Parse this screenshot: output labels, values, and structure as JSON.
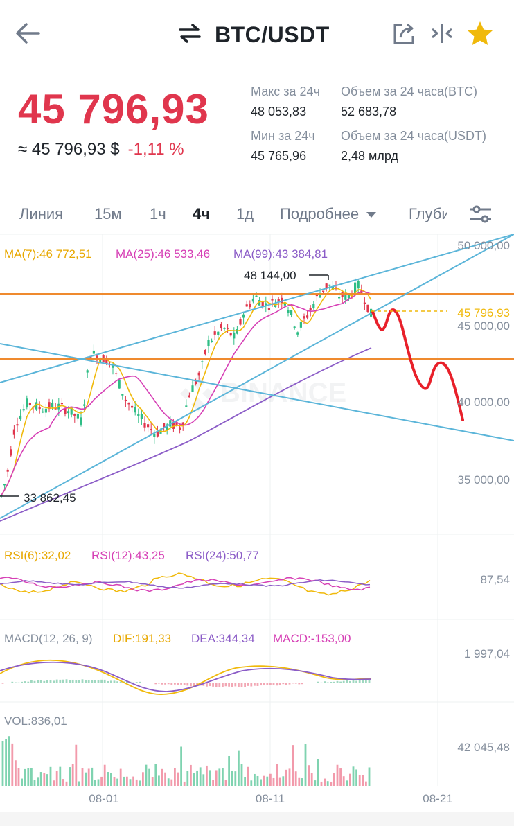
{
  "header": {
    "pair": "BTC/USDT"
  },
  "price": {
    "last": "45 796,93",
    "approx_usd": "≈ 45 796,93 $",
    "change": "-1,11 %"
  },
  "stats": {
    "high_label": "Макс за 24ч",
    "high_value": "48 053,83",
    "low_label": "Мин за 24ч",
    "low_value": "45 765,96",
    "vol_btc_label": "Объем за 24 часа(BTC)",
    "vol_btc_value": "52 683,78",
    "vol_usdt_label": "Объем за 24 часа(USDT)",
    "vol_usdt_value": "2,48 млрд"
  },
  "tabs": [
    "Линия",
    "15м",
    "1ч",
    "4ч",
    "1д",
    "Подробнее",
    "Глуби"
  ],
  "active_tab": "4ч",
  "indicators": {
    "ma7": "MA(7):46 772,51",
    "ma25": "MA(25):46 533,46",
    "ma99": "MA(99):43 384,81",
    "rsi6": "RSI(6):32,02",
    "rsi12": "RSI(12):43,25",
    "rsi24": "RSI(24):50,77",
    "macd_label": "MACD(12, 26, 9)",
    "dif": "DIF:191,33",
    "dea": "DEA:344,34",
    "macd": "MACD:-153,00",
    "vol": "VOL:836,01"
  },
  "axis": {
    "p50000": "50 000,00",
    "p45000": "45 000,00",
    "p40000": "40 000,00",
    "p35000": "35 000,00",
    "last_price_tag": "45 796,93",
    "high_marker": "48 144,00",
    "low_marker": "33 862,45",
    "rsi_max": "87,54",
    "macd_max": "1 997,04",
    "vol_max": "42 045,48",
    "dates": [
      "08-01",
      "08-11",
      "08-21"
    ]
  },
  "watermark": "BINANCE",
  "colors": {
    "down_red": "#e0364d",
    "up_green": "#2ebd85",
    "ma7": "#f0b90b",
    "ma25": "#d63fb5",
    "ma99": "#8b5cc7",
    "trendline": "#5bb5d9",
    "hline": "#ef8a2e",
    "annotation": "#e8202a",
    "star": "#f0b90b"
  },
  "icons": {
    "back": "arrow-left-icon",
    "swap": "swap-arrows-icon",
    "share": "share-icon",
    "compare": "compare-icon",
    "favorite": "star-icon",
    "settings": "sliders-icon",
    "dropdown": "caret-down-icon"
  }
}
